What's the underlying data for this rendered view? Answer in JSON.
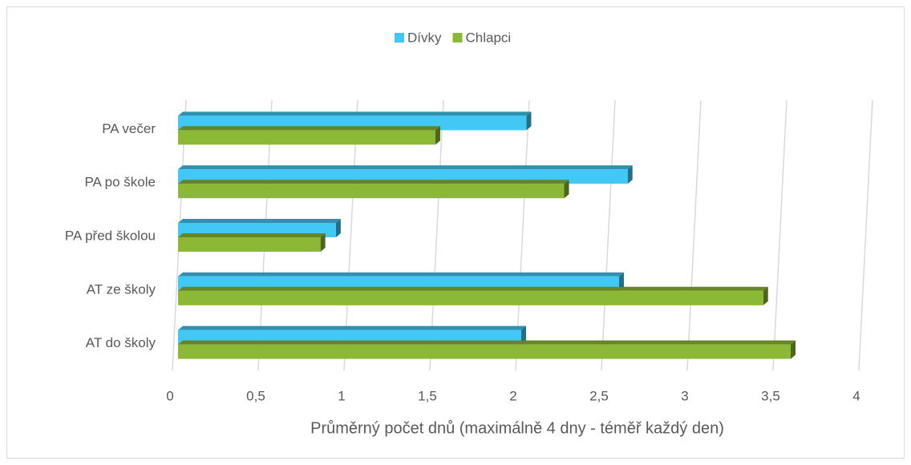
{
  "chart_data": {
    "type": "bar3d_horizontal",
    "x_label": "Průměrný počet dnů (maximálně 4 dny - téměř každý den)",
    "categories": [
      "PA večer",
      "PA po škole",
      "PA před školou",
      "AT ze školy",
      "AT do školy"
    ],
    "series": [
      {
        "name": "Dívky",
        "color": "#41c8f4",
        "values": [
          2.03,
          2.62,
          0.92,
          2.57,
          2.0
        ]
      },
      {
        "name": "Chlapci",
        "color": "#8cb935",
        "values": [
          1.5,
          2.25,
          0.83,
          3.41,
          3.57
        ]
      }
    ],
    "xlim": [
      0,
      4
    ],
    "xticks": [
      0,
      {
        "value": 0.5,
        "label": "0,5"
      },
      1,
      {
        "value": 1.5,
        "label": "1,5"
      },
      2,
      {
        "value": 2.5,
        "label": "2,5"
      },
      3,
      {
        "value": 3.5,
        "label": "3,5"
      },
      4
    ],
    "grid": true,
    "legend": "top"
  }
}
